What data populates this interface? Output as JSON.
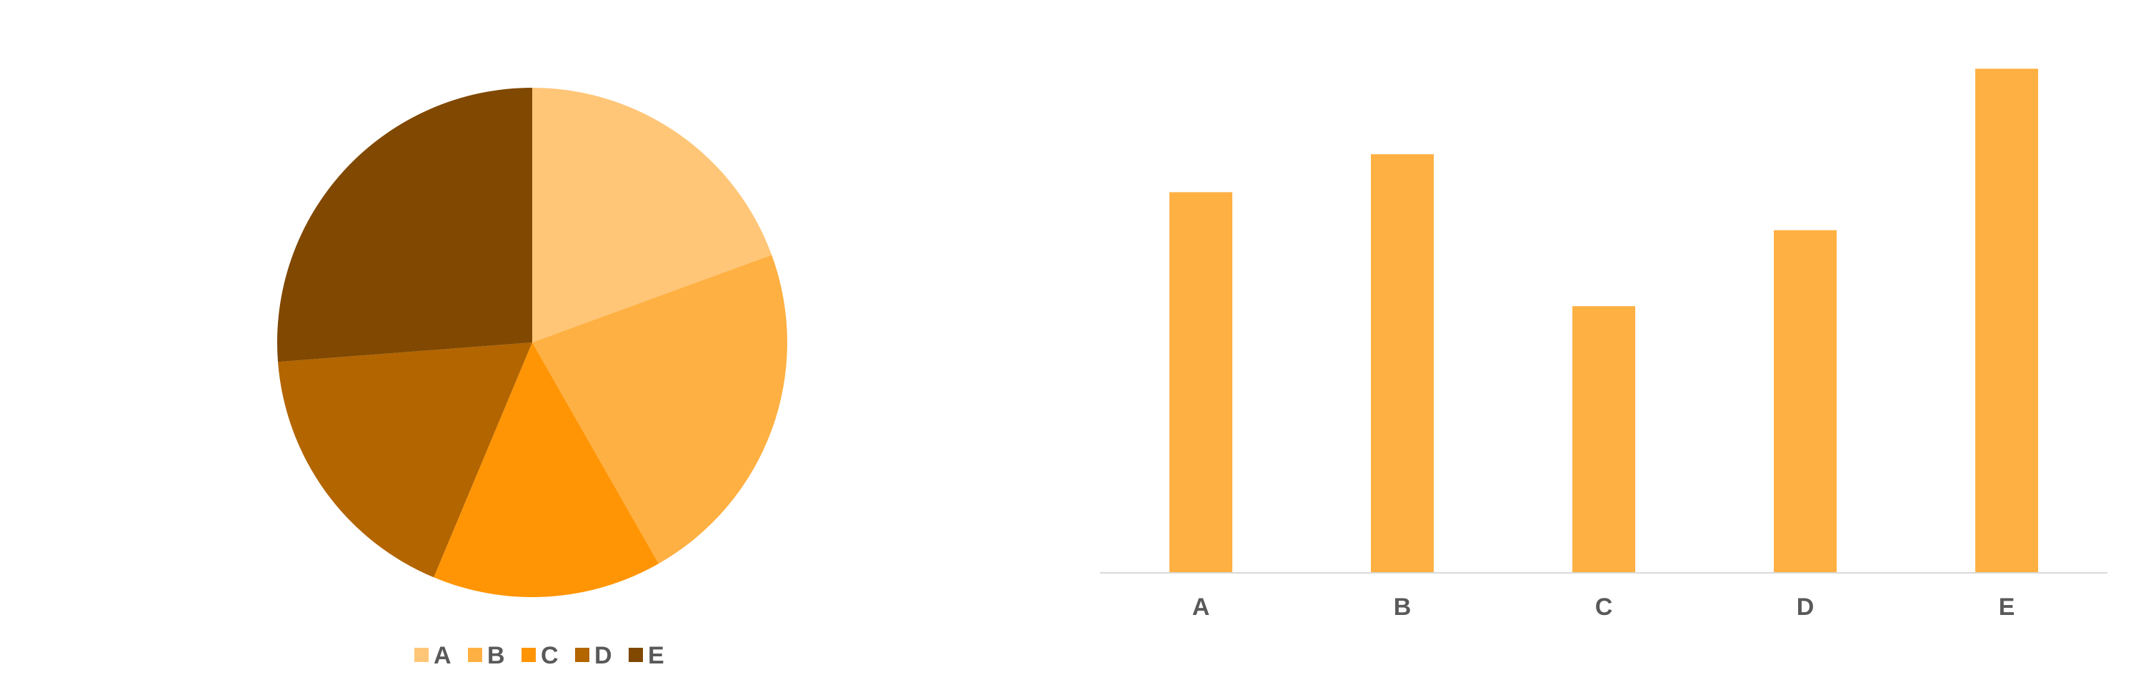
{
  "chart_data": [
    {
      "type": "pie",
      "title": "",
      "categories": [
        "A",
        "B",
        "C",
        "D",
        "E"
      ],
      "values": [
        20,
        23,
        15,
        18,
        27
      ],
      "colors": [
        "#FFC678",
        "#FFB042",
        "#FF9505",
        "#B36500",
        "#804800"
      ],
      "start_angle_deg": 0,
      "direction": "clockwise",
      "legend": {
        "placement": "bottom",
        "entries": [
          "A",
          "B",
          "C",
          "D",
          "E"
        ]
      }
    },
    {
      "type": "bar",
      "title": "",
      "categories": [
        "A",
        "B",
        "C",
        "D",
        "E"
      ],
      "values": [
        20,
        22,
        14,
        18,
        26.5
      ],
      "xlabel": "",
      "ylabel": "",
      "ylim": [
        0,
        27
      ],
      "grid": false,
      "bar_color": "#FFB042",
      "axis_color": "#D9D9D9"
    }
  ]
}
